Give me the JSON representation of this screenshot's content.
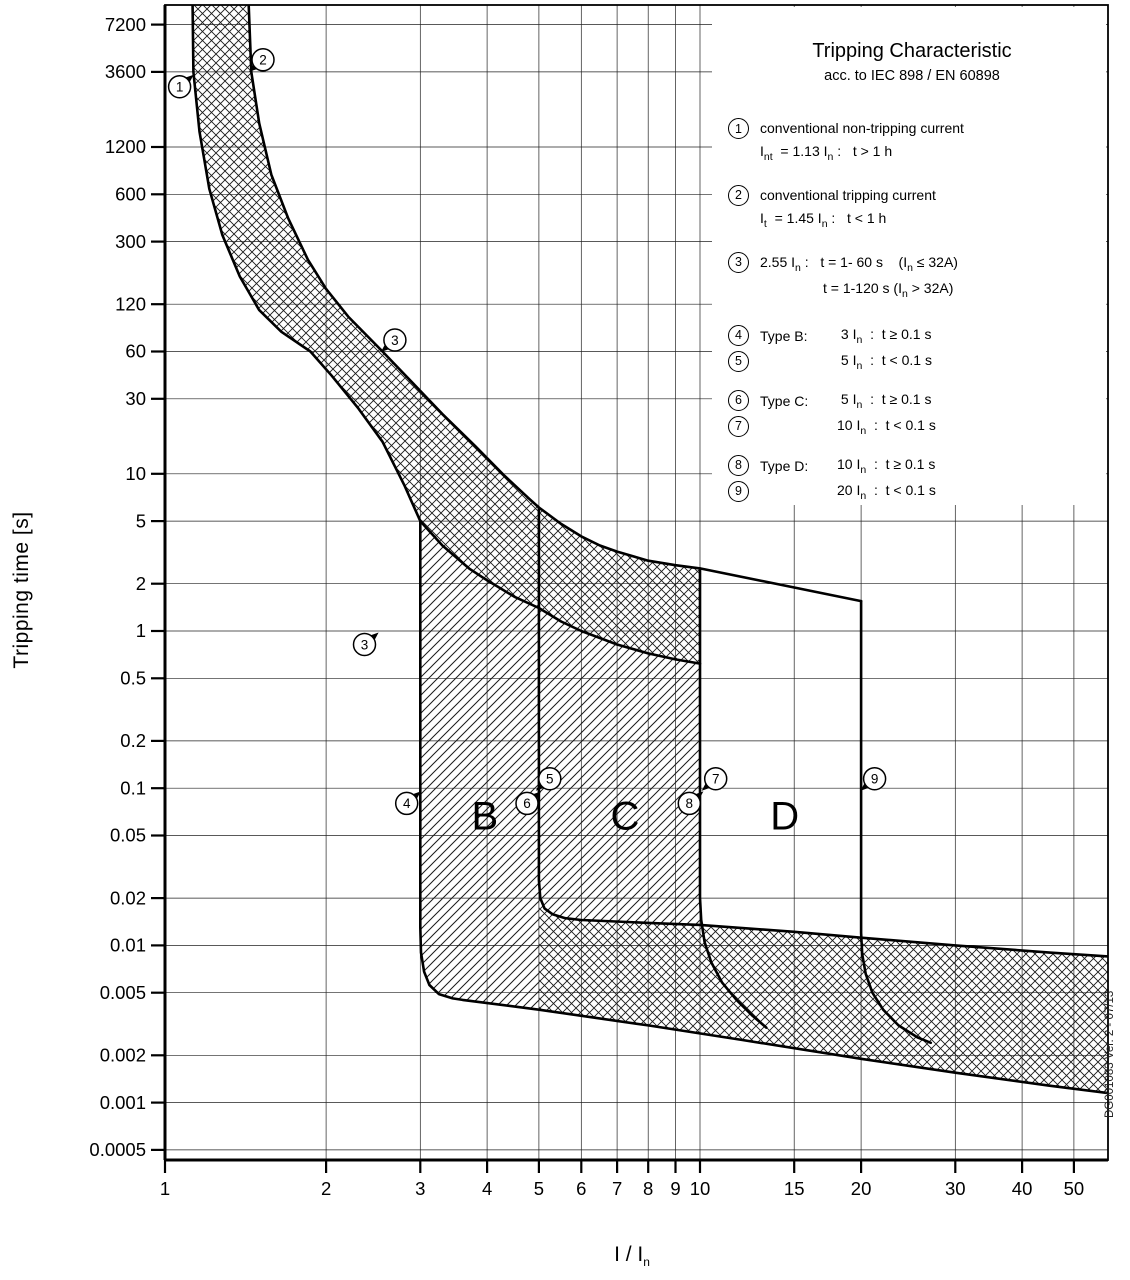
{
  "watermark": "DG001083 Ver. 2 - 07/13",
  "axes": {
    "x_title_main": "I / I",
    "x_title_sub": "n"
  },
  "legend": {
    "title": "Tripping Characteristic",
    "subtitle": "acc. to IEC 898 / EN 60898",
    "items": [
      {
        "num": "1",
        "desc": "conventional non-tripping current",
        "formula": "I~nt~  = 1.13 I~n~ :   t > 1 h"
      },
      {
        "num": "2",
        "desc": "conventional tripping current",
        "formula": "I~t~  = 1.45 I~n~ :   t < 1 h"
      },
      {
        "num": "3",
        "formula": "2.55 I~n~ :   t = 1- 60 s    (I~n~ ≤ 32A)",
        "formula2": "t = 1-120 s   (I~n~ > 32A)"
      },
      {
        "num": "4",
        "type_label": "Type B:",
        "formula": " 3 I~n~  :  t ≥ 0.1 s"
      },
      {
        "num": "5",
        "type_label": "",
        "formula": " 5 I~n~  :  t < 0.1 s"
      },
      {
        "num": "6",
        "type_label": "Type C:",
        "formula": " 5 I~n~  :  t ≥ 0.1 s",
        "gap": true
      },
      {
        "num": "7",
        "type_label": "",
        "formula": "10 I~n~  :  t < 0.1 s"
      },
      {
        "num": "8",
        "type_label": "Type D:",
        "formula": "10 I~n~  :  t ≥ 0.1 s",
        "gap": true
      },
      {
        "num": "9",
        "type_label": "",
        "formula": "20 I~n~  :  t < 0.1 s"
      }
    ]
  },
  "chart_data": {
    "type": "line",
    "title": "Tripping Characteristic acc. to IEC 898 / EN 60898",
    "xlabel": "I / In",
    "ylabel": "Tripping time [s]",
    "x_scale": "log",
    "y_scale": "log",
    "xlim": [
      1,
      57.9
    ],
    "ylim": [
      0.00043,
      9600
    ],
    "grid": true,
    "x_tick_values": [
      1,
      2,
      3,
      4,
      5,
      6,
      7,
      8,
      9,
      10,
      15,
      20,
      30,
      40,
      50
    ],
    "x_tick_labels": [
      "1",
      "2",
      "3",
      "4",
      "5",
      "6",
      "7",
      "8",
      "9",
      "10",
      "15",
      "20",
      "30",
      "40",
      "50"
    ],
    "y_tick_values": [
      7200,
      3600,
      1200,
      600,
      300,
      120,
      60,
      30,
      10,
      5,
      2,
      1,
      0.5,
      0.2,
      0.1,
      0.05,
      0.02,
      0.01,
      0.005,
      0.002,
      0.001,
      0.0005
    ],
    "y_tick_labels": [
      "7200",
      "3600",
      "1200",
      "600",
      "300",
      "120",
      "60",
      "30",
      "10",
      "5",
      "2",
      "1",
      "0.5",
      "0.2",
      "0.1",
      "0.05",
      "0.02",
      "0.01",
      "0.005",
      "0.002",
      "0.001",
      "0.0005"
    ],
    "series": [
      {
        "name": "max-trip-time",
        "points": [
          [
            1.43,
            12000
          ],
          [
            1.45,
            3600
          ],
          [
            1.5,
            1700
          ],
          [
            1.58,
            800
          ],
          [
            1.7,
            420
          ],
          [
            1.85,
            230
          ],
          [
            2.0,
            150
          ],
          [
            2.2,
            100
          ],
          [
            2.55,
            60
          ],
          [
            2.9,
            38
          ],
          [
            3.3,
            24
          ],
          [
            3.8,
            15
          ],
          [
            4.3,
            9.8
          ],
          [
            4.8,
            6.9
          ],
          [
            5.0,
            6.1
          ],
          [
            5.5,
            4.8
          ],
          [
            6.0,
            4.0
          ],
          [
            6.5,
            3.5
          ],
          [
            7.0,
            3.2
          ],
          [
            8.0,
            2.8
          ],
          [
            9.0,
            2.62
          ],
          [
            10.0,
            2.5
          ],
          [
            20.0,
            1.55
          ]
        ]
      },
      {
        "name": "min-trip-time",
        "points": [
          [
            1.125,
            12000
          ],
          [
            1.13,
            3600
          ],
          [
            1.16,
            1500
          ],
          [
            1.21,
            650
          ],
          [
            1.28,
            330
          ],
          [
            1.38,
            180
          ],
          [
            1.5,
            110
          ],
          [
            1.65,
            80
          ],
          [
            1.87,
            60
          ],
          [
            2.05,
            42
          ],
          [
            2.3,
            26
          ],
          [
            2.55,
            16
          ],
          [
            2.8,
            8.5
          ],
          [
            3.0,
            5.0
          ],
          [
            3.3,
            3.5
          ],
          [
            3.7,
            2.5
          ],
          [
            4.0,
            2.1
          ],
          [
            4.5,
            1.65
          ],
          [
            5.0,
            1.4
          ],
          [
            5.5,
            1.15
          ],
          [
            6.0,
            1.0
          ],
          [
            7.0,
            0.82
          ],
          [
            8.0,
            0.72
          ],
          [
            9.0,
            0.66
          ],
          [
            10.0,
            0.62
          ]
        ]
      },
      {
        "name": "type-b-limit",
        "points": [
          [
            3,
            5
          ],
          [
            3,
            0.013
          ],
          [
            3.01,
            0.009
          ],
          [
            3.05,
            0.0068
          ],
          [
            3.12,
            0.0056
          ],
          [
            3.25,
            0.0049
          ],
          [
            3.45,
            0.0046
          ],
          [
            3.6,
            0.0045
          ],
          [
            5,
            0.0039
          ],
          [
            8,
            0.0031
          ],
          [
            12,
            0.0025
          ],
          [
            20,
            0.0019
          ],
          [
            30,
            0.00155
          ],
          [
            45,
            0.00128
          ],
          [
            58,
            0.00115
          ]
        ]
      },
      {
        "name": "type-c-limit",
        "points": [
          [
            5,
            6.1
          ],
          [
            5,
            0.026
          ],
          [
            5.03,
            0.02
          ],
          [
            5.12,
            0.0172
          ],
          [
            5.3,
            0.0158
          ],
          [
            5.6,
            0.0149
          ],
          [
            6,
            0.0145
          ],
          [
            8,
            0.0139
          ],
          [
            10,
            0.0135
          ],
          [
            15,
            0.0122
          ],
          [
            20,
            0.0112
          ],
          [
            30,
            0.01
          ],
          [
            45,
            0.009
          ],
          [
            58,
            0.0085
          ]
        ]
      },
      {
        "name": "type-d-left",
        "points": [
          [
            10,
            2.5
          ],
          [
            10,
            0.02
          ],
          [
            10.05,
            0.0145
          ],
          [
            10.2,
            0.0105
          ],
          [
            10.5,
            0.0078
          ],
          [
            11,
            0.0058
          ],
          [
            11.7,
            0.0045
          ],
          [
            12.5,
            0.0036
          ],
          [
            13.3,
            0.003
          ]
        ]
      },
      {
        "name": "type-d-right",
        "points": [
          [
            20,
            1.55
          ],
          [
            20,
            0.012
          ],
          [
            20.1,
            0.0088
          ],
          [
            20.4,
            0.0066
          ],
          [
            21,
            0.005
          ],
          [
            22,
            0.0039
          ],
          [
            23.5,
            0.0031
          ],
          [
            25.5,
            0.0026
          ],
          [
            27,
            0.0024
          ]
        ]
      }
    ],
    "fills": [
      {
        "name": "thermal-band",
        "hatch": "cross",
        "points": [
          [
            1.125,
            12000
          ],
          [
            1.13,
            3600
          ],
          [
            1.16,
            1500
          ],
          [
            1.21,
            650
          ],
          [
            1.28,
            330
          ],
          [
            1.38,
            180
          ],
          [
            1.5,
            110
          ],
          [
            1.65,
            80
          ],
          [
            1.87,
            60
          ],
          [
            2.05,
            42
          ],
          [
            2.3,
            26
          ],
          [
            2.55,
            16
          ],
          [
            2.8,
            8.5
          ],
          [
            3.0,
            5.0
          ],
          [
            3.3,
            3.5
          ],
          [
            3.7,
            2.5
          ],
          [
            4.0,
            2.1
          ],
          [
            4.5,
            1.65
          ],
          [
            5.0,
            1.4
          ],
          [
            5.5,
            1.15
          ],
          [
            6.0,
            1.0
          ],
          [
            7.0,
            0.82
          ],
          [
            8.0,
            0.72
          ],
          [
            9.0,
            0.66
          ],
          [
            10.0,
            0.62
          ],
          [
            10.0,
            2.5
          ],
          [
            9.0,
            2.62
          ],
          [
            8.0,
            2.8
          ],
          [
            7.0,
            3.2
          ],
          [
            6.5,
            3.5
          ],
          [
            6.0,
            4.0
          ],
          [
            5.5,
            4.8
          ],
          [
            5.0,
            6.1
          ],
          [
            4.8,
            6.9
          ],
          [
            4.3,
            9.8
          ],
          [
            3.8,
            15
          ],
          [
            3.3,
            24
          ],
          [
            2.9,
            38
          ],
          [
            2.55,
            60
          ],
          [
            2.2,
            100
          ],
          [
            2.0,
            150
          ],
          [
            1.85,
            230
          ],
          [
            1.7,
            420
          ],
          [
            1.58,
            800
          ],
          [
            1.5,
            1700
          ],
          [
            1.45,
            3600
          ],
          [
            1.43,
            12000
          ]
        ]
      },
      {
        "name": "region-b",
        "hatch": "diag",
        "points": [
          [
            3,
            5
          ],
          [
            3.3,
            3.5
          ],
          [
            3.7,
            2.5
          ],
          [
            4.0,
            2.1
          ],
          [
            4.5,
            1.65
          ],
          [
            5.0,
            1.4
          ],
          [
            5,
            0.0039
          ],
          [
            3.6,
            0.0045
          ],
          [
            3.45,
            0.0046
          ],
          [
            3.25,
            0.0049
          ],
          [
            3.12,
            0.0056
          ],
          [
            3.05,
            0.0068
          ],
          [
            3.01,
            0.009
          ],
          [
            3,
            0.013
          ]
        ]
      },
      {
        "name": "region-c",
        "hatch": "diag",
        "points": [
          [
            5.0,
            1.4
          ],
          [
            5.5,
            1.15
          ],
          [
            6.0,
            1.0
          ],
          [
            7.0,
            0.82
          ],
          [
            8.0,
            0.72
          ],
          [
            9.0,
            0.66
          ],
          [
            10.0,
            0.62
          ],
          [
            10,
            0.0135
          ],
          [
            8,
            0.0139
          ],
          [
            6,
            0.0145
          ],
          [
            5.6,
            0.0149
          ],
          [
            5.3,
            0.0158
          ],
          [
            5.12,
            0.0172
          ],
          [
            5.03,
            0.02
          ],
          [
            5,
            0.026
          ]
        ]
      },
      {
        "name": "instantaneous-band",
        "hatch": "cross",
        "points": [
          [
            5,
            0.026
          ],
          [
            5.03,
            0.02
          ],
          [
            5.12,
            0.0172
          ],
          [
            5.3,
            0.0158
          ],
          [
            5.6,
            0.0149
          ],
          [
            6,
            0.0145
          ],
          [
            8,
            0.0139
          ],
          [
            10,
            0.0135
          ],
          [
            15,
            0.0122
          ],
          [
            20,
            0.0112
          ],
          [
            30,
            0.01
          ],
          [
            45,
            0.009
          ],
          [
            58,
            0.0085
          ],
          [
            58,
            0.00115
          ],
          [
            45,
            0.00128
          ],
          [
            30,
            0.00155
          ],
          [
            20,
            0.0019
          ],
          [
            12,
            0.0025
          ],
          [
            8,
            0.0031
          ],
          [
            5,
            0.0039
          ]
        ]
      }
    ],
    "regions": [
      {
        "label": "B",
        "i": 3.96,
        "t": 0.068
      },
      {
        "label": "C",
        "i": 7.24,
        "t": 0.068
      },
      {
        "label": "D",
        "i": 14.4,
        "t": 0.068
      }
    ],
    "markers": [
      {
        "n": "1",
        "i": 1.065,
        "t": 2900,
        "dir": "ne"
      },
      {
        "n": "2",
        "i": 1.525,
        "t": 4300,
        "dir": "sw"
      },
      {
        "n": "3",
        "i": 2.69,
        "t": 71,
        "dir": "sw"
      },
      {
        "n": "3",
        "i": 2.36,
        "t": 0.82,
        "dir": "ne"
      },
      {
        "n": "4",
        "i": 2.83,
        "t": 0.08,
        "dir": "ne"
      },
      {
        "n": "5",
        "i": 5.24,
        "t": 0.115,
        "dir": "sw"
      },
      {
        "n": "6",
        "i": 4.75,
        "t": 0.08,
        "dir": "ne"
      },
      {
        "n": "7",
        "i": 10.7,
        "t": 0.115,
        "dir": "sw"
      },
      {
        "n": "8",
        "i": 9.55,
        "t": 0.08,
        "dir": "ne"
      },
      {
        "n": "9",
        "i": 21.2,
        "t": 0.115,
        "dir": "sw"
      }
    ]
  }
}
